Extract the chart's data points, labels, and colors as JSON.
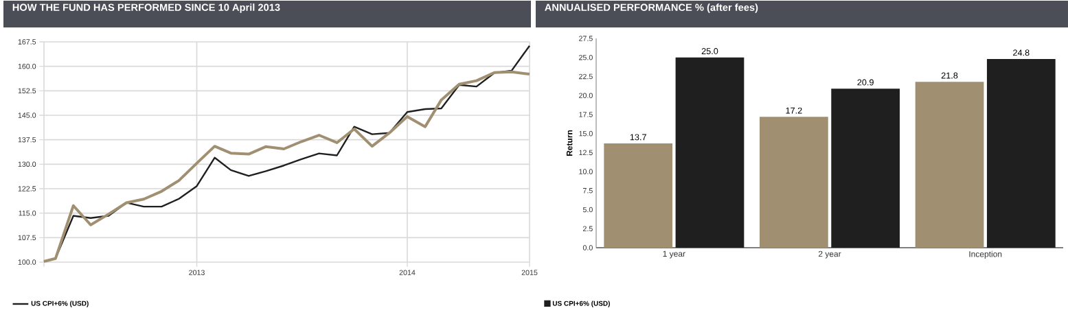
{
  "chart_data": [
    {
      "type": "line",
      "title": "HOW THE FUND HAS PERFORMED SINCE 10 April 2013",
      "x": [
        "2013-04-10",
        "2013-04-30",
        "2013-05-31",
        "2013-06-30",
        "2013-07-31",
        "2013-08-31",
        "2013-09-30",
        "2013-10-31",
        "2013-11-30",
        "2013-12-31",
        "2014-01-31",
        "2014-02-28",
        "2014-03-31",
        "2014-04-30",
        "2014-05-31",
        "2014-06-30",
        "2014-07-31",
        "2014-08-31",
        "2014-09-30",
        "2014-10-31",
        "2014-11-30",
        "2014-12-31",
        "2015-01-31",
        "2015-02-28",
        "2015-03-31",
        "2015-04-30",
        "2015-05-31",
        "2015-06-30",
        "2015-07-31"
      ],
      "series": [
        {
          "name": "US CPI+6% (USD)",
          "color": "#1f1f1f",
          "values": [
            100.2,
            101.1,
            114.2,
            113.5,
            114.2,
            118.2,
            117.0,
            117.0,
            119.4,
            123.3,
            132.0,
            128.2,
            126.4,
            127.9,
            129.6,
            131.5,
            133.3,
            132.7,
            141.5,
            139.2,
            139.6,
            146.0,
            146.9,
            147.1,
            154.3,
            153.8,
            158.0,
            158.7,
            166.3
          ]
        },
        {
          "color": "#a09071",
          "values": [
            100.2,
            101.1,
            117.3,
            111.4,
            114.7,
            118.2,
            119.3,
            121.7,
            125.0,
            130.3,
            135.5,
            133.4,
            133.1,
            135.4,
            134.7,
            136.9,
            138.9,
            136.6,
            140.8,
            135.5,
            139.6,
            144.6,
            141.5,
            149.7,
            154.5,
            155.6,
            158.1,
            158.3,
            157.6
          ]
        }
      ],
      "xlim": [
        "2013-04-10",
        "2015-07-31"
      ],
      "xticks": [
        {
          "value": "2013-04-10",
          "label": null
        },
        {
          "value": "2013-12-31",
          "label": "2013"
        },
        {
          "value": "2014-12-31",
          "label": "2014"
        },
        {
          "value": "2015-07-31",
          "label": "2015"
        }
      ],
      "ylim": [
        100,
        167.5
      ],
      "yticks": [
        {
          "value": 100,
          "label": "100.0"
        },
        107.5,
        {
          "value": 115,
          "label": "115.0"
        },
        122.5,
        {
          "value": 130,
          "label": "130.0"
        },
        137.5,
        {
          "value": 145,
          "label": "145.0"
        },
        152.5,
        {
          "value": 160,
          "label": "160.0"
        },
        167.5
      ],
      "grid": true,
      "legend": "bottom",
      "marker": "none",
      "line_style": "solid"
    },
    {
      "type": "bar",
      "title": "ANNUALISED PERFORMANCE % (after fees)",
      "ylabel": "Return",
      "categories": [
        "1 year",
        "2 year",
        "Inception"
      ],
      "series": [
        {
          "color": "#a09071",
          "values": [
            13.7,
            17.2,
            21.8
          ],
          "value_labels": [
            "13.7",
            "17.2",
            "21.8"
          ]
        },
        {
          "name": "US CPI+6% (USD)",
          "color": "#1f1f1f",
          "values": [
            25.0,
            20.9,
            24.8
          ],
          "value_labels": [
            "25.0",
            "20.9",
            "24.8"
          ]
        }
      ],
      "ylim": [
        0,
        27.5
      ],
      "yticks": [
        {
          "value": 0,
          "label": "0.0"
        },
        2.5,
        {
          "value": 5,
          "label": "5.0"
        },
        7.5,
        {
          "value": 10,
          "label": "10.0"
        },
        12.5,
        {
          "value": 15,
          "label": "15.0"
        },
        17.5,
        {
          "value": 20,
          "label": "20.0"
        },
        22.5,
        {
          "value": 25,
          "label": "25.0"
        },
        27.5
      ],
      "grid": false,
      "legend": "bottom"
    }
  ]
}
